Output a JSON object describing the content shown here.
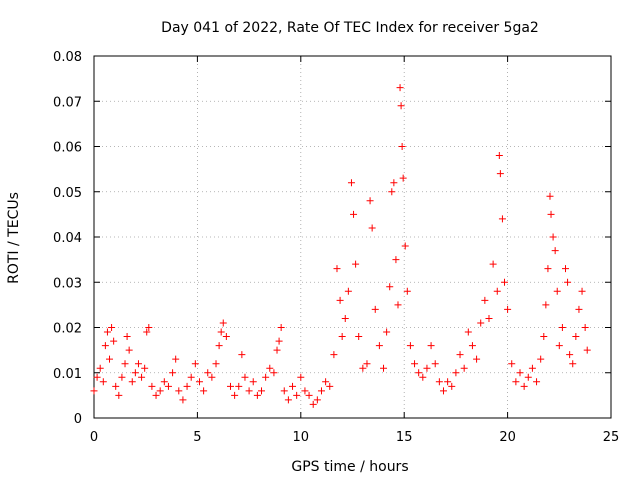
{
  "chart_data": {
    "type": "scatter",
    "title": "Day 041 of 2022, Rate Of TEC Index for receiver 5ga2",
    "xlabel": "GPS time / hours",
    "ylabel": "ROTI / TECUs",
    "xlim": [
      0,
      25
    ],
    "ylim": [
      0,
      0.08
    ],
    "x_ticks": [
      0,
      5,
      10,
      15,
      20,
      25
    ],
    "y_ticks": [
      0,
      0.01,
      0.02,
      0.03,
      0.04,
      0.05,
      0.06,
      0.07,
      0.08
    ],
    "x_tick_labels": [
      "0",
      "5",
      "10",
      "15",
      "20",
      "25"
    ],
    "y_tick_labels": [
      "0",
      "0.01",
      "0.02",
      "0.03",
      "0.04",
      "0.05",
      "0.06",
      "0.07",
      "0.08"
    ],
    "grid": true,
    "marker": "plus",
    "marker_color": "#ff0000",
    "series": [
      {
        "name": "5ga2",
        "points": [
          [
            0.0,
            0.006
          ],
          [
            0.15,
            0.009
          ],
          [
            0.3,
            0.011
          ],
          [
            0.45,
            0.008
          ],
          [
            0.55,
            0.016
          ],
          [
            0.65,
            0.019
          ],
          [
            0.75,
            0.013
          ],
          [
            0.85,
            0.02
          ],
          [
            0.95,
            0.017
          ],
          [
            1.05,
            0.007
          ],
          [
            1.2,
            0.005
          ],
          [
            1.35,
            0.009
          ],
          [
            1.5,
            0.012
          ],
          [
            1.6,
            0.018
          ],
          [
            1.7,
            0.015
          ],
          [
            1.85,
            0.008
          ],
          [
            2.0,
            0.01
          ],
          [
            2.15,
            0.012
          ],
          [
            2.3,
            0.009
          ],
          [
            2.45,
            0.011
          ],
          [
            2.55,
            0.019
          ],
          [
            2.65,
            0.02
          ],
          [
            2.8,
            0.007
          ],
          [
            3.0,
            0.005
          ],
          [
            3.2,
            0.006
          ],
          [
            3.4,
            0.008
          ],
          [
            3.6,
            0.007
          ],
          [
            3.8,
            0.01
          ],
          [
            3.95,
            0.013
          ],
          [
            4.1,
            0.006
          ],
          [
            4.3,
            0.004
          ],
          [
            4.5,
            0.007
          ],
          [
            4.7,
            0.009
          ],
          [
            4.9,
            0.012
          ],
          [
            5.1,
            0.008
          ],
          [
            5.3,
            0.006
          ],
          [
            5.5,
            0.01
          ],
          [
            5.7,
            0.009
          ],
          [
            5.9,
            0.012
          ],
          [
            6.05,
            0.016
          ],
          [
            6.15,
            0.019
          ],
          [
            6.25,
            0.021
          ],
          [
            6.4,
            0.018
          ],
          [
            6.6,
            0.007
          ],
          [
            6.8,
            0.005
          ],
          [
            7.0,
            0.007
          ],
          [
            7.15,
            0.014
          ],
          [
            7.3,
            0.009
          ],
          [
            7.5,
            0.006
          ],
          [
            7.7,
            0.008
          ],
          [
            7.9,
            0.005
          ],
          [
            8.1,
            0.006
          ],
          [
            8.3,
            0.009
          ],
          [
            8.5,
            0.011
          ],
          [
            8.7,
            0.01
          ],
          [
            8.85,
            0.015
          ],
          [
            8.95,
            0.017
          ],
          [
            9.05,
            0.02
          ],
          [
            9.2,
            0.006
          ],
          [
            9.4,
            0.004
          ],
          [
            9.6,
            0.007
          ],
          [
            9.8,
            0.005
          ],
          [
            10.0,
            0.009
          ],
          [
            10.2,
            0.006
          ],
          [
            10.4,
            0.005
          ],
          [
            10.6,
            0.003
          ],
          [
            10.8,
            0.004
          ],
          [
            11.0,
            0.006
          ],
          [
            11.2,
            0.008
          ],
          [
            11.4,
            0.007
          ],
          [
            11.6,
            0.014
          ],
          [
            11.75,
            0.033
          ],
          [
            11.9,
            0.026
          ],
          [
            12.0,
            0.018
          ],
          [
            12.15,
            0.022
          ],
          [
            12.3,
            0.028
          ],
          [
            12.45,
            0.052
          ],
          [
            12.55,
            0.045
          ],
          [
            12.65,
            0.034
          ],
          [
            12.8,
            0.018
          ],
          [
            13.0,
            0.011
          ],
          [
            13.2,
            0.012
          ],
          [
            13.35,
            0.048
          ],
          [
            13.45,
            0.042
          ],
          [
            13.6,
            0.024
          ],
          [
            13.8,
            0.016
          ],
          [
            14.0,
            0.011
          ],
          [
            14.15,
            0.019
          ],
          [
            14.3,
            0.029
          ],
          [
            14.4,
            0.05
          ],
          [
            14.5,
            0.052
          ],
          [
            14.6,
            0.035
          ],
          [
            14.7,
            0.025
          ],
          [
            14.8,
            0.073
          ],
          [
            14.85,
            0.069
          ],
          [
            14.9,
            0.06
          ],
          [
            14.95,
            0.053
          ],
          [
            15.05,
            0.038
          ],
          [
            15.15,
            0.028
          ],
          [
            15.3,
            0.016
          ],
          [
            15.5,
            0.012
          ],
          [
            15.7,
            0.01
          ],
          [
            15.9,
            0.009
          ],
          [
            16.1,
            0.011
          ],
          [
            16.3,
            0.016
          ],
          [
            16.5,
            0.012
          ],
          [
            16.7,
            0.008
          ],
          [
            16.9,
            0.006
          ],
          [
            17.1,
            0.008
          ],
          [
            17.3,
            0.007
          ],
          [
            17.5,
            0.01
          ],
          [
            17.7,
            0.014
          ],
          [
            17.9,
            0.011
          ],
          [
            18.1,
            0.019
          ],
          [
            18.3,
            0.016
          ],
          [
            18.5,
            0.013
          ],
          [
            18.7,
            0.021
          ],
          [
            18.9,
            0.026
          ],
          [
            19.1,
            0.022
          ],
          [
            19.3,
            0.034
          ],
          [
            19.5,
            0.028
          ],
          [
            19.6,
            0.058
          ],
          [
            19.65,
            0.054
          ],
          [
            19.75,
            0.044
          ],
          [
            19.85,
            0.03
          ],
          [
            20.0,
            0.024
          ],
          [
            20.2,
            0.012
          ],
          [
            20.4,
            0.008
          ],
          [
            20.6,
            0.01
          ],
          [
            20.8,
            0.007
          ],
          [
            21.0,
            0.009
          ],
          [
            21.2,
            0.011
          ],
          [
            21.4,
            0.008
          ],
          [
            21.6,
            0.013
          ],
          [
            21.75,
            0.018
          ],
          [
            21.85,
            0.025
          ],
          [
            21.95,
            0.033
          ],
          [
            22.05,
            0.049
          ],
          [
            22.1,
            0.045
          ],
          [
            22.2,
            0.04
          ],
          [
            22.3,
            0.037
          ],
          [
            22.4,
            0.028
          ],
          [
            22.5,
            0.016
          ],
          [
            22.65,
            0.02
          ],
          [
            22.8,
            0.033
          ],
          [
            22.9,
            0.03
          ],
          [
            23.0,
            0.014
          ],
          [
            23.15,
            0.012
          ],
          [
            23.3,
            0.018
          ],
          [
            23.45,
            0.024
          ],
          [
            23.6,
            0.028
          ],
          [
            23.75,
            0.02
          ],
          [
            23.85,
            0.015
          ]
        ]
      }
    ]
  }
}
